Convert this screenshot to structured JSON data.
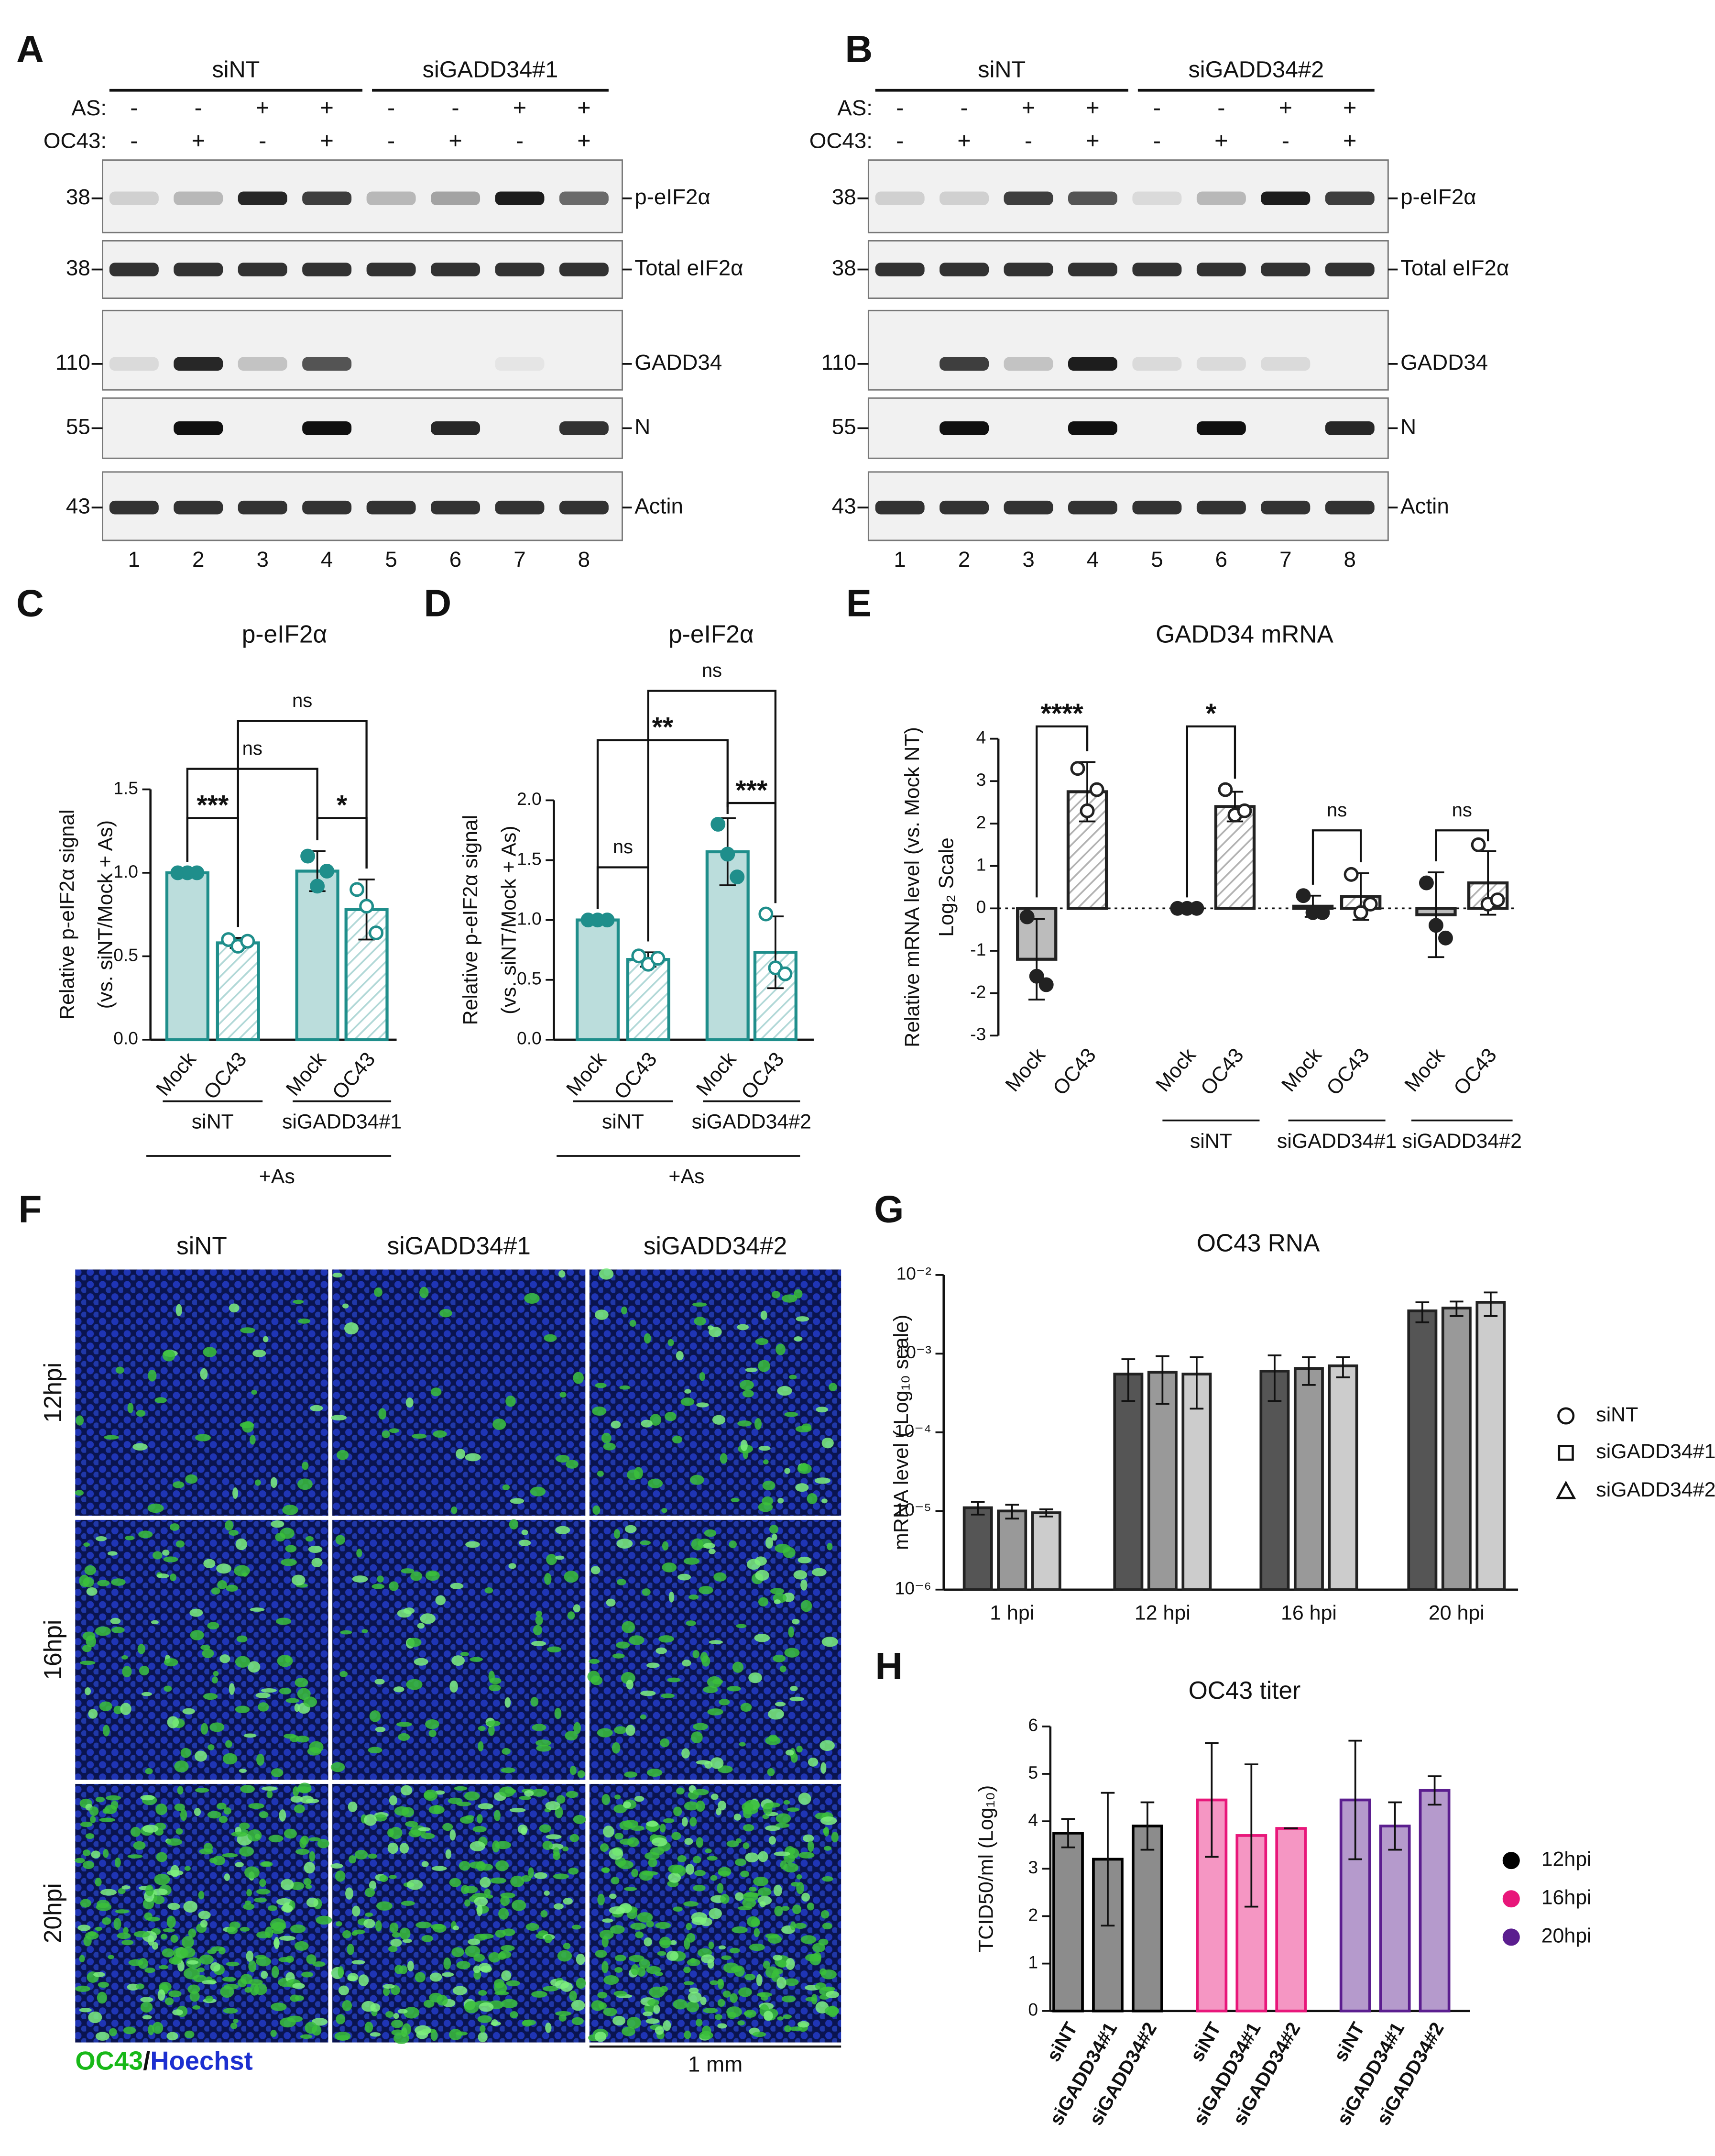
{
  "panel_labels": [
    "A",
    "B",
    "C",
    "D",
    "E",
    "F",
    "G",
    "H"
  ],
  "blots": [
    {
      "groups": [
        "siNT",
        "siGADD34#1"
      ],
      "row_labels": [
        "AS:",
        "OC43:"
      ],
      "as": [
        "-",
        "-",
        "+",
        "+",
        "-",
        "-",
        "+",
        "+"
      ],
      "oc43": [
        "-",
        "+",
        "-",
        "+",
        "-",
        "+",
        "-",
        "+"
      ],
      "markers": [
        38,
        38,
        110,
        55,
        43
      ],
      "bands": [
        "p-eIF2α",
        "Total eIF2α",
        "GADD34",
        "N",
        "Actin"
      ],
      "lanes": [
        1,
        2,
        3,
        4,
        5,
        6,
        7,
        8
      ]
    },
    {
      "groups": [
        "siNT",
        "siGADD34#2"
      ],
      "row_labels": [
        "AS:",
        "OC43:"
      ],
      "as": [
        "-",
        "-",
        "+",
        "+",
        "-",
        "-",
        "+",
        "+"
      ],
      "oc43": [
        "-",
        "+",
        "-",
        "+",
        "-",
        "+",
        "-",
        "+"
      ],
      "markers": [
        38,
        38,
        110,
        55,
        43
      ],
      "bands": [
        "p-eIF2α",
        "Total eIF2α",
        "GADD34",
        "N",
        "Actin"
      ],
      "lanes": [
        1,
        2,
        3,
        4,
        5,
        6,
        7,
        8
      ]
    }
  ],
  "micrographs": {
    "columns": [
      "siNT",
      "siGADD34#1",
      "siGADD34#2"
    ],
    "rows": [
      "12hpi",
      "16hpi",
      "20hpi"
    ],
    "stain": [
      "OC43",
      "/",
      "Hoechst"
    ],
    "scale_bar": "1 mm"
  },
  "chart_data": [
    {
      "type": "bar",
      "title": "p-eIF2α",
      "y_label": [
        "Relative p-eIF2α signal",
        "(vs. siNT/Mock + As)"
      ],
      "color": "#1f8e8b",
      "categories": [
        "Mock",
        "OC43",
        "Mock",
        "OC43"
      ],
      "groups": [
        "siNT",
        "siGADD34#1"
      ],
      "condition": "+As",
      "values": [
        1.0,
        0.58,
        1.01,
        0.78
      ],
      "errors": [
        0.0,
        0.03,
        0.12,
        0.18
      ],
      "points": [
        [
          1.0,
          1.0,
          1.0
        ],
        [
          0.6,
          0.56,
          0.59
        ],
        [
          1.1,
          0.92,
          1.01
        ],
        [
          0.9,
          0.8,
          0.64
        ]
      ],
      "significance": [
        "***",
        "ns",
        "*",
        "ns"
      ],
      "ylim": [
        0,
        1.5
      ],
      "yticks": [
        {
          "value": 0,
          "label": "0.0"
        },
        {
          "value": 0.5,
          "label": "0.5"
        },
        {
          "value": 1,
          "label": "1.0"
        },
        {
          "value": 1.5,
          "label": "1.5"
        }
      ]
    },
    {
      "type": "bar",
      "title": "p-eIF2α",
      "y_label": [
        "Relative p-eIF2α signal",
        "(vs. siNT/Mock + As)"
      ],
      "color": "#1f8e8b",
      "categories": [
        "Mock",
        "OC43",
        "Mock",
        "OC43"
      ],
      "groups": [
        "siNT",
        "siGADD34#2"
      ],
      "condition": "+As",
      "values": [
        1.0,
        0.67,
        1.57,
        0.73
      ],
      "errors": [
        0.0,
        0.06,
        0.28,
        0.3
      ],
      "points": [
        [
          1.0,
          1.0,
          1.0
        ],
        [
          0.7,
          0.63,
          0.68
        ],
        [
          1.8,
          1.55,
          1.36
        ],
        [
          1.05,
          0.6,
          0.55
        ]
      ],
      "significance": [
        "ns",
        "**",
        "***",
        "ns"
      ],
      "ylim": [
        0,
        2
      ],
      "yticks": [
        {
          "value": 0,
          "label": "0.0"
        },
        {
          "value": 0.5,
          "label": "0.5"
        },
        {
          "value": 1,
          "label": "1.0"
        },
        {
          "value": 1.5,
          "label": "1.5"
        },
        {
          "value": 2,
          "label": "2.0"
        }
      ]
    },
    {
      "type": "bar",
      "title": "GADD34 mRNA",
      "y_label": [
        "Relative mRNA level (vs. Mock NT)",
        "Log₂ Scale"
      ],
      "color": "#222222",
      "categories": [
        "Mock",
        "OC43",
        "Mock",
        "OC43",
        "Mock",
        "OC43",
        "Mock",
        "OC43"
      ],
      "groups": [
        null,
        "siNT",
        "siGADD34#1",
        "siGADD34#2"
      ],
      "values": [
        -1.2,
        2.75,
        0,
        2.4,
        0.05,
        0.28,
        -0.15,
        0.6
      ],
      "errors": [
        0.95,
        0.7,
        0,
        0.35,
        0.25,
        0.55,
        1.0,
        0.75
      ],
      "points": [
        [
          -0.2,
          -1.6,
          -1.8
        ],
        [
          3.3,
          2.3,
          2.8
        ],
        [
          0,
          0,
          0
        ],
        [
          2.8,
          2.2,
          2.3
        ],
        [
          0.3,
          -0.1,
          -0.1
        ],
        [
          0.8,
          -0.1,
          0.1
        ],
        [
          0.6,
          -0.4,
          -0.7
        ],
        [
          1.5,
          0.1,
          0.2
        ]
      ],
      "significance": [
        "****",
        "*",
        "ns",
        "ns"
      ],
      "zero_line": true,
      "ylim": [
        -3,
        4
      ],
      "yticks": [
        -3,
        -2,
        -1,
        0,
        1,
        2,
        3,
        4
      ]
    },
    {
      "type": "bar",
      "title": "OC43 RNA",
      "y_label": [
        "mRNA level ( Log₁₀ scale)"
      ],
      "log": true,
      "categories": [
        "1 hpi",
        "12 hpi",
        "16 hpi",
        "20 hpi"
      ],
      "series": [
        {
          "name": "siNT",
          "color": "#555555",
          "marker": "circle",
          "values": [
            1.1e-05,
            0.00055,
            0.0006,
            0.0035
          ],
          "errors": [
            2e-06,
            0.0003,
            0.00035,
            0.001
          ]
        },
        {
          "name": "siGADD34#1",
          "color": "#999999",
          "marker": "square",
          "values": [
            1e-05,
            0.00058,
            0.00065,
            0.0038
          ],
          "errors": [
            2e-06,
            0.00035,
            0.00025,
            0.0008
          ]
        },
        {
          "name": "siGADD34#2",
          "color": "#cccccc",
          "marker": "triangle",
          "values": [
            9.5e-06,
            0.00055,
            0.0007,
            0.0045
          ],
          "errors": [
            1e-06,
            0.00035,
            0.0002,
            0.0015
          ]
        }
      ],
      "ylim": [
        1e-06,
        0.01
      ],
      "yticks": [
        {
          "value": 1e-06,
          "label": "10⁻⁶"
        },
        {
          "value": 1e-05,
          "label": "10⁻⁵"
        },
        {
          "value": 0.0001,
          "label": "10⁻⁴"
        },
        {
          "value": 0.001,
          "label": "10⁻³"
        },
        {
          "value": 0.01,
          "label": "10⁻²"
        }
      ]
    },
    {
      "type": "bar",
      "title": "OC43 titer",
      "y_label": [
        "TCID50/ml (Log₁₀)"
      ],
      "categories": [
        "siNT",
        "siGADD34#1",
        "siGADD34#2"
      ],
      "series": [
        {
          "name": "12hpi",
          "color": "#000000",
          "values": [
            3.75,
            3.2,
            3.9
          ],
          "errors": [
            0.3,
            1.4,
            0.5
          ]
        },
        {
          "name": "16hpi",
          "color": "#e8177a",
          "values": [
            4.45,
            3.7,
            3.85
          ],
          "errors": [
            1.2,
            1.5,
            0
          ]
        },
        {
          "name": "20hpi",
          "color": "#5b1e8f",
          "values": [
            4.45,
            3.9,
            4.65
          ],
          "errors": [
            1.25,
            0.5,
            0.3
          ]
        }
      ],
      "ylim": [
        0,
        6
      ],
      "yticks": [
        0,
        1,
        2,
        3,
        4,
        5,
        6
      ]
    }
  ]
}
